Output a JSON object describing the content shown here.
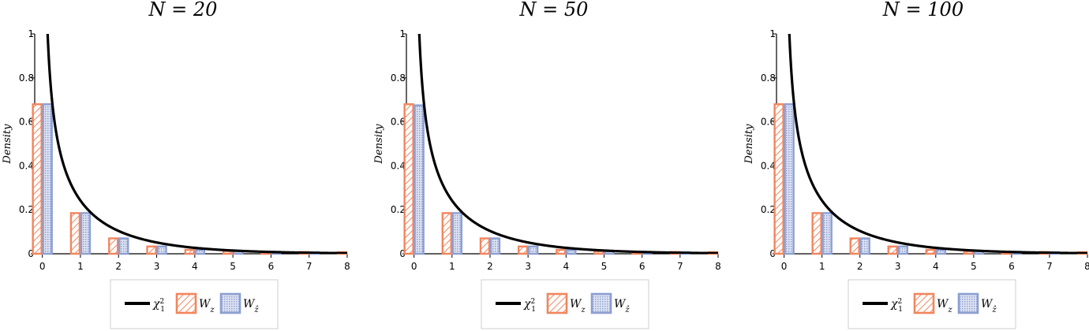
{
  "colors": {
    "wz": "#f2855d",
    "wzhat": "#8c9fd2",
    "chi": "#000000"
  },
  "chart_data": [
    {
      "type": "bar",
      "title": "N = 20",
      "xlabel": "",
      "ylabel": "Density",
      "xlim": [
        -0.2,
        8
      ],
      "ylim": [
        0,
        1
      ],
      "xticks": [
        "0",
        "1",
        "2",
        "3",
        "4",
        "5",
        "6",
        "7",
        "8"
      ],
      "yticks": [
        "0",
        "0.2",
        "0.4",
        "0.6",
        "0.8",
        "1"
      ],
      "categories": [
        0,
        1,
        2,
        3,
        4,
        5,
        6,
        7,
        8
      ],
      "series": [
        {
          "name": "W_z",
          "values": [
            0.68,
            0.185,
            0.07,
            0.033,
            0.018,
            0.012,
            0.009,
            0.008,
            0.007
          ]
        },
        {
          "name": "W_ẑ",
          "values": [
            0.68,
            0.185,
            0.07,
            0.033,
            0.018,
            0.012,
            0.009,
            0.007,
            0
          ]
        }
      ],
      "curve": {
        "name": "χ²₁",
        "description": "chi-square density, 1 degree of freedom"
      },
      "legend": {
        "position": "bottom",
        "entries": [
          "χ²₁",
          "W_z",
          "W_ẑ"
        ]
      }
    },
    {
      "type": "bar",
      "title": "N = 50",
      "xlabel": "",
      "ylabel": "Density",
      "xlim": [
        -0.2,
        8
      ],
      "ylim": [
        0,
        1
      ],
      "xticks": [
        "0",
        "1",
        "2",
        "3",
        "4",
        "5",
        "6",
        "7",
        "8"
      ],
      "yticks": [
        "0",
        "0.2",
        "0.4",
        "0.6",
        "0.8",
        "1"
      ],
      "categories": [
        0,
        1,
        2,
        3,
        4,
        5,
        6,
        7,
        8
      ],
      "series": [
        {
          "name": "W_z",
          "values": [
            0.68,
            0.185,
            0.07,
            0.033,
            0.018,
            0.012,
            0.009,
            0.008,
            0.007
          ]
        },
        {
          "name": "W_ẑ",
          "values": [
            0.675,
            0.185,
            0.07,
            0.033,
            0.018,
            0.012,
            0.009,
            0.007,
            0
          ]
        }
      ],
      "curve": {
        "name": "χ²₁",
        "description": "chi-square density, 1 degree of freedom"
      },
      "legend": {
        "position": "bottom",
        "entries": [
          "χ²₁",
          "W_z",
          "W_ẑ"
        ]
      }
    },
    {
      "type": "bar",
      "title": "N = 100",
      "xlabel": "",
      "ylabel": "Density",
      "xlim": [
        -0.2,
        8
      ],
      "ylim": [
        0,
        1
      ],
      "xticks": [
        "0",
        "1",
        "2",
        "3",
        "4",
        "5",
        "6",
        "7",
        "8"
      ],
      "yticks": [
        "0",
        "0.2",
        "0.4",
        "0.6",
        "0.8",
        "1"
      ],
      "categories": [
        0,
        1,
        2,
        3,
        4,
        5,
        6,
        7,
        8
      ],
      "series": [
        {
          "name": "W_z",
          "values": [
            0.68,
            0.185,
            0.07,
            0.033,
            0.018,
            0.012,
            0.009,
            0.008,
            0.007
          ]
        },
        {
          "name": "W_ẑ",
          "values": [
            0.68,
            0.185,
            0.07,
            0.033,
            0.018,
            0.012,
            0.009,
            0.007,
            0
          ]
        }
      ],
      "curve": {
        "name": "χ²₁",
        "description": "chi-square density, 1 degree of freedom"
      },
      "legend": {
        "position": "bottom",
        "entries": [
          "χ²₁",
          "W_z",
          "W_ẑ"
        ]
      }
    }
  ]
}
